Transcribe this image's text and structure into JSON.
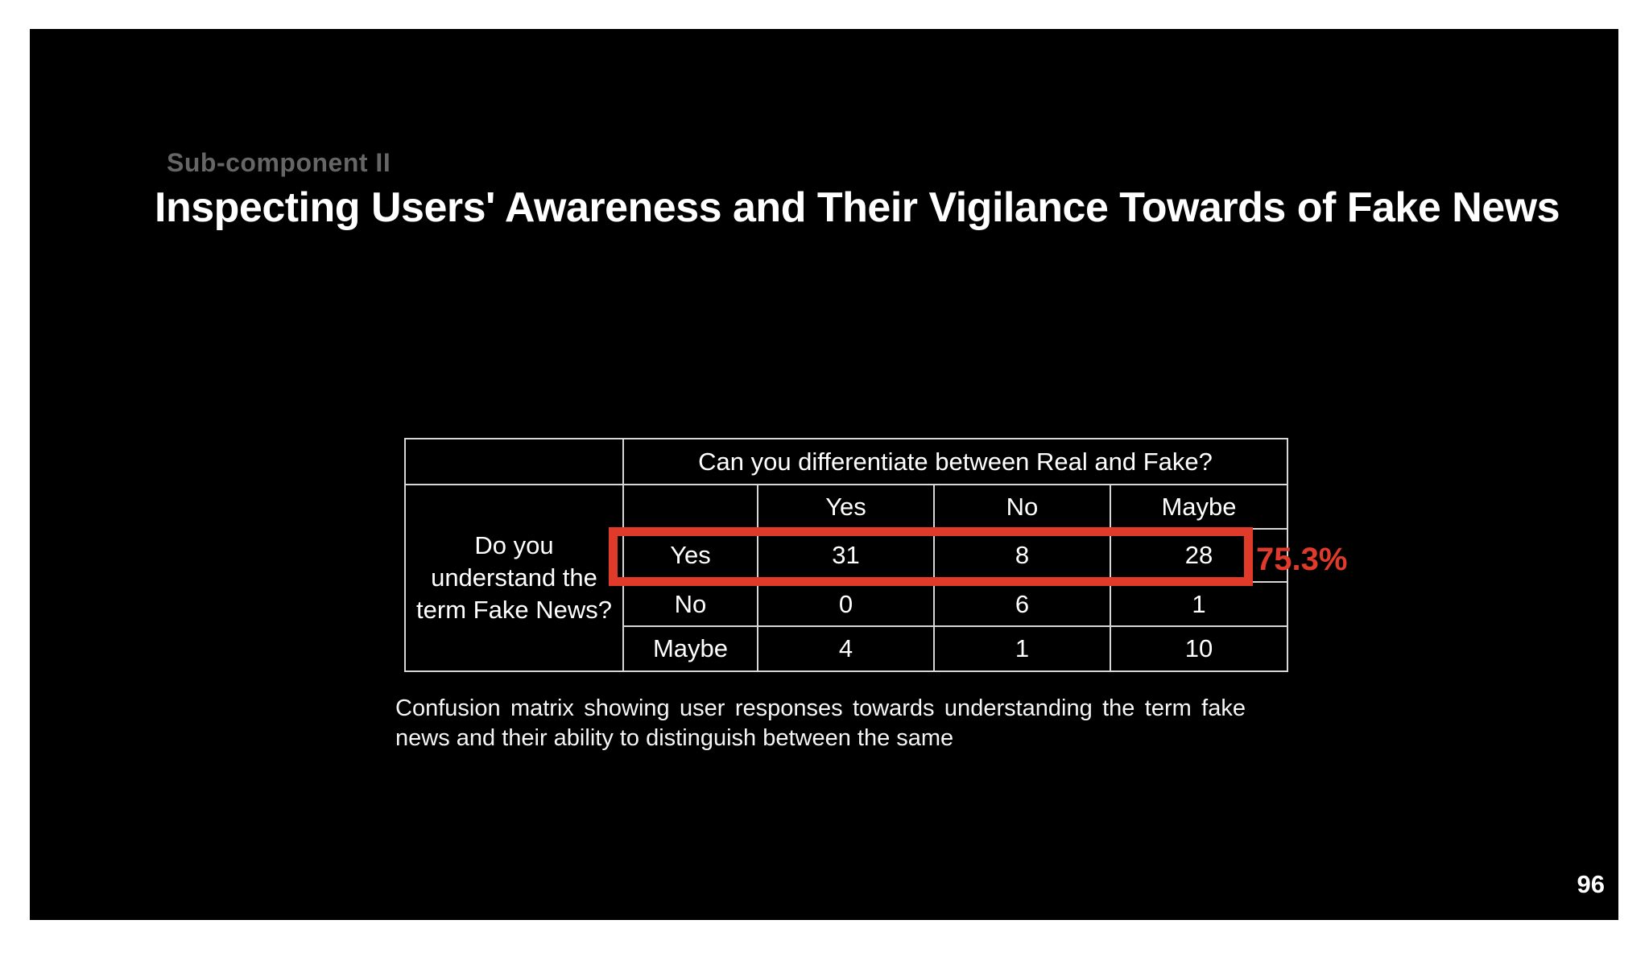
{
  "slide": {
    "eyebrow": "Sub-component II",
    "title": "Inspecting Users' Awareness and Their Vigilance Towards of Fake News",
    "caption": "Confusion matrix showing user responses towards understanding the term fake news and their ability to distinguish between the same",
    "page_number": "96",
    "colors": {
      "slide_background": "#000000",
      "page_margin": "#ffffff",
      "text": "#ffffff",
      "eyebrow_gray": "#666666",
      "table_border": "#d6d6d6",
      "highlight_red": "#e03a2b"
    }
  },
  "table": {
    "column_question": "Can you differentiate between Real and Fake?",
    "row_question": "Do you understand the term Fake News?",
    "column_labels": [
      "Yes",
      "No",
      "Maybe"
    ],
    "row_labels": [
      "Yes",
      "No",
      "Maybe"
    ],
    "highlight_label": "75.3%"
  },
  "chart_data": {
    "type": "table",
    "column_question": "Can you differentiate between Real and Fake?",
    "row_question": "Do you understand the term Fake News?",
    "columns": [
      "Yes",
      "No",
      "Maybe"
    ],
    "rows": [
      "Yes",
      "No",
      "Maybe"
    ],
    "values": [
      [
        31,
        8,
        28
      ],
      [
        0,
        6,
        1
      ],
      [
        4,
        1,
        10
      ]
    ],
    "highlight": {
      "row": "Yes",
      "annotation": "75.3%"
    }
  }
}
